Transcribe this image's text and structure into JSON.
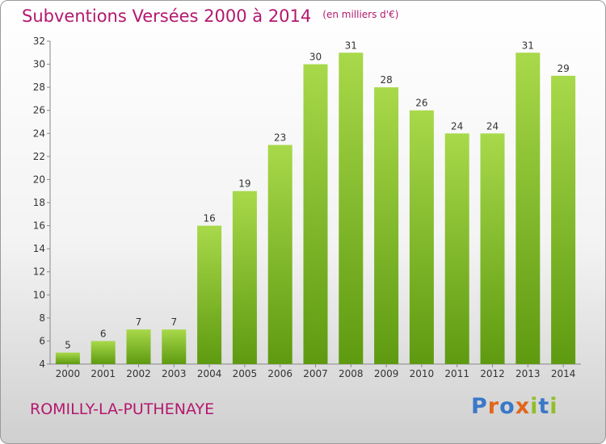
{
  "header": {
    "title": "Subventions Versées 2000 à 2014",
    "unit": "(en milliers d'€)"
  },
  "footer": {
    "commune": "ROMILLY-LA-PUTHENAYE",
    "logo_text": "Proxiti",
    "logo_colors": [
      "#3a78c8",
      "#e0661a",
      "#3a78c8",
      "#e0661a",
      "#8fbf2a",
      "#3a78c8",
      "#8fbf2a"
    ]
  },
  "colors": {
    "title": "#b4186e",
    "bar_light": "#a8d94a",
    "bar_dark": "#5e9a10"
  },
  "chart_data": {
    "type": "bar",
    "categories": [
      "2000",
      "2001",
      "2002",
      "2003",
      "2004",
      "2005",
      "2006",
      "2007",
      "2008",
      "2009",
      "2010",
      "2011",
      "2012",
      "2013",
      "2014"
    ],
    "values": [
      5,
      6,
      7,
      7,
      16,
      19,
      23,
      30,
      31,
      28,
      26,
      24,
      24,
      31,
      29
    ],
    "title": "Subventions Versées 2000 à 2014",
    "ylim": [
      4,
      32
    ],
    "yticks": [
      4,
      6,
      8,
      10,
      12,
      14,
      16,
      18,
      20,
      22,
      24,
      26,
      28,
      30,
      32
    ],
    "grid": false,
    "data_labels": true
  }
}
